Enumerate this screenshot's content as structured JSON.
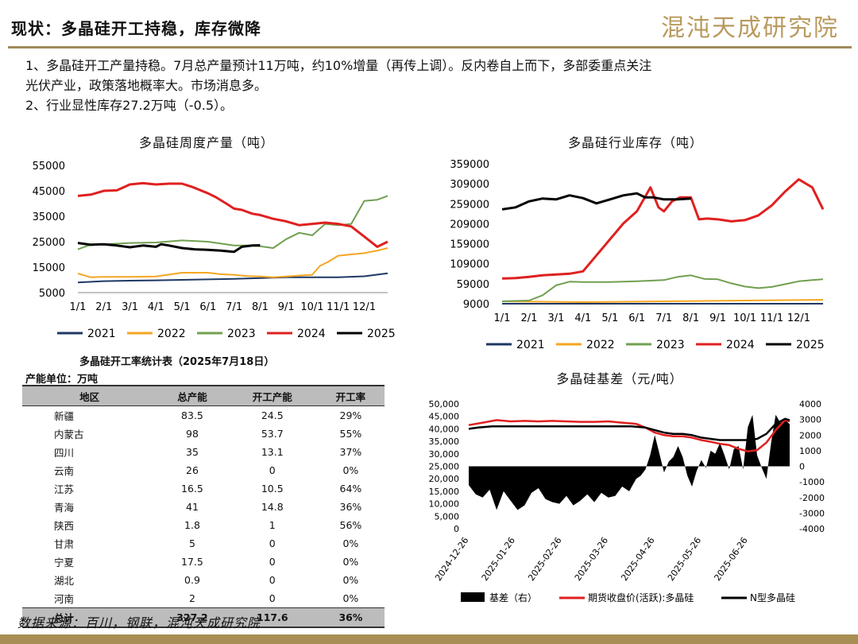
{
  "header": {
    "title": "现状：多晶硅开工持稳，库存微降",
    "brand": "混沌天成研究院"
  },
  "bullets": [
    "1、多晶硅开工产量持稳。7月总产量预计11万吨，约10%增量（再传上调）。反内卷自上而下，多部委重点关注",
    "光伏产业，政策落地概率大。市场消息多。",
    "2、行业显性库存27.2万吨（-0.5）。"
  ],
  "colors": {
    "s2021": "#1f3864",
    "s2022": "#f5a623",
    "s2023": "#70a050",
    "s2024": "#e02020",
    "s2025": "#000000",
    "basis": "#000000",
    "futures": "#e02020",
    "ntype": "#000000"
  },
  "chart_data": [
    {
      "type": "line",
      "title": "多晶硅周度产量（吨）",
      "categories": [
        "1/1",
        "2/1",
        "3/1",
        "4/1",
        "5/1",
        "6/1",
        "7/1",
        "8/1",
        "9/1",
        "10/1",
        "11/1",
        "12/1"
      ],
      "yticks": [
        "55000",
        "45000",
        "35000",
        "25000",
        "15000",
        "5000"
      ],
      "ylim": [
        5000,
        55000
      ],
      "xlim": [
        0,
        11.9
      ],
      "series": [
        {
          "name": "2021",
          "color": "#1f3864",
          "x": [
            0,
            1,
            2,
            3,
            4,
            5,
            6,
            7,
            8,
            9,
            10,
            11,
            11.9
          ],
          "values": [
            9000,
            9500,
            9700,
            9800,
            10000,
            10200,
            10400,
            10700,
            11000,
            11000,
            11000,
            11400,
            12600
          ]
        },
        {
          "name": "2022",
          "color": "#f5a623",
          "x": [
            0,
            0.5,
            1,
            2,
            3,
            4,
            5,
            5.5,
            6,
            6.5,
            7,
            7.5,
            8,
            8.7,
            9,
            9.3,
            9.6,
            10,
            10.5,
            11,
            11.5,
            11.9
          ],
          "values": [
            12500,
            11000,
            11200,
            11200,
            11300,
            12800,
            12800,
            12200,
            12000,
            11500,
            11300,
            11000,
            11300,
            11800,
            12000,
            15500,
            17000,
            19500,
            20000,
            20500,
            21500,
            22500
          ]
        },
        {
          "name": "2023",
          "color": "#70a050",
          "x": [
            0,
            0.4,
            1,
            2,
            3,
            4,
            5,
            6,
            6.5,
            7,
            7.5,
            8,
            8.5,
            9,
            9.5,
            10,
            10.5,
            11,
            11.5,
            11.9
          ],
          "values": [
            22000,
            23500,
            24000,
            24500,
            24700,
            25500,
            25000,
            23500,
            23500,
            23200,
            22500,
            26000,
            28500,
            27500,
            32000,
            31500,
            32000,
            41000,
            41500,
            43000
          ]
        },
        {
          "name": "2024",
          "color": "#e02020",
          "x": [
            0,
            0.5,
            1,
            1.5,
            2,
            2.5,
            3,
            3.5,
            4,
            4.4,
            5,
            5.3,
            5.7,
            6,
            6.3,
            6.7,
            7,
            7.5,
            8,
            8.5,
            9,
            9.5,
            10,
            10.5,
            11,
            11.5,
            11.9
          ],
          "values": [
            43000,
            43500,
            45000,
            45200,
            47500,
            48000,
            47500,
            47800,
            47800,
            46500,
            44000,
            42500,
            40000,
            38000,
            37500,
            36000,
            35500,
            34000,
            33000,
            31500,
            32000,
            32500,
            32000,
            31000,
            27000,
            23000,
            25000
          ]
        },
        {
          "name": "2025",
          "color": "#000000",
          "x": [
            0,
            0.5,
            1,
            1.5,
            2,
            2.5,
            3,
            3.2,
            3.5,
            4,
            4.5,
            5,
            5.5,
            6,
            6.3,
            6.7,
            7
          ],
          "values": [
            24500,
            23800,
            24000,
            23500,
            22800,
            23500,
            23000,
            24000,
            23500,
            22500,
            22000,
            21800,
            21500,
            21000,
            23000,
            23500,
            23600
          ]
        }
      ]
    },
    {
      "type": "line",
      "title": "多晶硅行业库存（吨）",
      "categories": [
        "1/1",
        "2/1",
        "3/1",
        "4/1",
        "5/1",
        "6/1",
        "7/1",
        "8/1",
        "9/1",
        "10/1",
        "11/1",
        "12/1"
      ],
      "yticks": [
        "359000",
        "309000",
        "259000",
        "209000",
        "159000",
        "109000",
        "59000",
        "9000"
      ],
      "ylim": [
        9000,
        359000
      ],
      "xlim": [
        0,
        11.9
      ],
      "series": [
        {
          "name": "2021",
          "color": "#1f3864",
          "x": [
            0,
            2,
            4,
            6,
            8,
            10,
            11.9
          ],
          "values": [
            9000,
            9000,
            9000,
            9000,
            9000,
            9000,
            9000
          ]
        },
        {
          "name": "2022",
          "color": "#f5a623",
          "x": [
            0,
            3,
            6,
            9,
            11.9
          ],
          "values": [
            15000,
            13000,
            15000,
            17000,
            19000
          ]
        },
        {
          "name": "2023",
          "color": "#70a050",
          "x": [
            0,
            1,
            1.5,
            2,
            2.5,
            3,
            3.5,
            4,
            4.5,
            5,
            6,
            6.5,
            7,
            7.5,
            8,
            8.5,
            9,
            9.5,
            10,
            10.5,
            11,
            11.5,
            11.9
          ],
          "values": [
            15000,
            17000,
            30000,
            55000,
            64000,
            63000,
            63000,
            63000,
            64000,
            65000,
            68000,
            76000,
            80000,
            71000,
            70000,
            60000,
            52000,
            48000,
            51000,
            58000,
            65000,
            68000,
            70000
          ]
        },
        {
          "name": "2024",
          "color": "#e02020",
          "x": [
            0,
            0.5,
            1,
            1.5,
            2,
            2.5,
            3,
            3.5,
            4,
            4.5,
            5,
            5.5,
            5.8,
            6,
            6.3,
            6.6,
            7,
            7.3,
            7.6,
            8,
            8.5,
            9,
            9.5,
            10,
            10.5,
            11,
            11.5,
            11.9
          ],
          "values": [
            72000,
            73000,
            76000,
            80000,
            82000,
            84000,
            90000,
            130000,
            170000,
            210000,
            240000,
            300000,
            250000,
            240000,
            265000,
            275000,
            275000,
            220000,
            222000,
            220000,
            215000,
            218000,
            230000,
            255000,
            290000,
            320000,
            300000,
            245000
          ]
        },
        {
          "name": "2025",
          "color": "#000000",
          "x": [
            0,
            0.5,
            1,
            1.5,
            2,
            2.5,
            3,
            3.5,
            4,
            4.5,
            5,
            5.3,
            5.6,
            6,
            6.5,
            7
          ],
          "values": [
            245000,
            250000,
            265000,
            272000,
            270000,
            280000,
            273000,
            260000,
            270000,
            280000,
            285000,
            275000,
            275000,
            270000,
            270000,
            272000
          ]
        }
      ]
    },
    {
      "type": "line",
      "title": "多晶硅基差（元/吨）",
      "x_tick_labels": [
        "2024-12-26",
        "2025-01-26",
        "2025-02-26",
        "2025-03-26",
        "2025-04-26",
        "2025-05-26",
        "2025-06-26"
      ],
      "yticks_left": [
        "50,000",
        "45,000",
        "40,000",
        "35,000",
        "30,000",
        "25,000",
        "20,000",
        "15,000",
        "10,000",
        "5,000",
        "0"
      ],
      "yticks_right": [
        "4000",
        "3000",
        "2000",
        "1000",
        "0",
        "-1000",
        "-2000",
        "-3000",
        "-4000"
      ],
      "ylim_left": [
        0,
        50000
      ],
      "ylim_right": [
        -4000,
        4000
      ],
      "xlim": [
        0,
        6.9
      ],
      "legend": [
        "基差（右）",
        "期货收盘价(活跃):多晶硅",
        "N型多晶硅"
      ],
      "series": [
        {
          "name": "基差（右）",
          "type": "area",
          "axis": "right",
          "color": "#000000",
          "x": [
            0,
            0.15,
            0.3,
            0.45,
            0.6,
            0.75,
            0.9,
            1.05,
            1.2,
            1.35,
            1.5,
            1.65,
            1.8,
            1.95,
            2.1,
            2.25,
            2.4,
            2.55,
            2.7,
            2.85,
            3.0,
            3.15,
            3.3,
            3.45,
            3.6,
            3.7,
            3.8,
            3.9,
            4.0,
            4.1,
            4.2,
            4.3,
            4.4,
            4.5,
            4.6,
            4.7,
            4.8,
            4.9,
            5.0,
            5.1,
            5.2,
            5.3,
            5.4,
            5.5,
            5.6,
            5.7,
            5.8,
            5.9,
            6.0,
            6.1,
            6.2,
            6.3,
            6.4,
            6.5,
            6.6,
            6.7,
            6.8,
            6.9
          ],
          "values": [
            -1200,
            -1800,
            -2000,
            -1500,
            -2800,
            -1600,
            -2200,
            -2800,
            -2500,
            -1700,
            -1400,
            -2100,
            -2300,
            -2400,
            -1900,
            -2500,
            -2200,
            -1800,
            -2300,
            -1700,
            -2000,
            -1900,
            -1300,
            -1600,
            -800,
            -600,
            -200,
            700,
            2000,
            800,
            -400,
            300,
            600,
            1300,
            600,
            -600,
            -1300,
            -300,
            400,
            -100,
            1000,
            800,
            1500,
            700,
            -200,
            1100,
            1300,
            -200,
            2500,
            3300,
            700,
            -100,
            -800,
            1500,
            3300,
            2800,
            3000,
            2700
          ]
        },
        {
          "name": "期货收盘价(活跃):多晶硅",
          "axis": "left",
          "color": "#e02020",
          "x": [
            0,
            0.3,
            0.6,
            0.9,
            1.2,
            1.5,
            1.8,
            2.1,
            2.4,
            2.7,
            3.0,
            3.3,
            3.6,
            3.8,
            4.0,
            4.2,
            4.4,
            4.6,
            4.8,
            5.0,
            5.2,
            5.4,
            5.6,
            5.8,
            6.0,
            6.2,
            6.4,
            6.6,
            6.8,
            6.9
          ],
          "values": [
            41500,
            42500,
            43500,
            43000,
            43200,
            43000,
            43200,
            43000,
            42800,
            42800,
            43000,
            42500,
            42000,
            40500,
            38500,
            37500,
            37000,
            37000,
            36500,
            35500,
            34800,
            34000,
            33500,
            32000,
            31000,
            31500,
            34500,
            39500,
            43500,
            43000
          ]
        },
        {
          "name": "N型多晶硅",
          "axis": "left",
          "color": "#000000",
          "x": [
            0,
            0.2,
            0.5,
            1.0,
            1.5,
            2.0,
            2.5,
            3.0,
            3.5,
            3.8,
            4.0,
            4.2,
            4.4,
            4.6,
            4.8,
            5.0,
            5.2,
            5.4,
            5.6,
            5.8,
            6.0,
            6.2,
            6.4,
            6.6,
            6.8,
            6.9
          ],
          "values": [
            40000,
            40500,
            41000,
            41000,
            41000,
            41000,
            41000,
            41000,
            41000,
            40500,
            39500,
            38500,
            38000,
            38000,
            37500,
            36500,
            36000,
            35500,
            35500,
            35500,
            35500,
            36000,
            38000,
            42000,
            44000,
            43500
          ]
        }
      ]
    },
    {
      "type": "table",
      "title": "多晶硅开工率统计表（2025年7月18日）",
      "unit_label": "产能单位：万吨",
      "columns": [
        "地区",
        "总产能",
        "开工产能",
        "开工率"
      ],
      "rows": [
        [
          "新疆",
          "83.5",
          "24.5",
          "29%"
        ],
        [
          "内蒙古",
          "98",
          "53.7",
          "55%"
        ],
        [
          "四川",
          "35",
          "13.1",
          "37%"
        ],
        [
          "云南",
          "26",
          "0",
          "0%"
        ],
        [
          "江苏",
          "16.5",
          "10.5",
          "64%"
        ],
        [
          "青海",
          "41",
          "14.8",
          "36%"
        ],
        [
          "陕西",
          "1.8",
          "1",
          "56%"
        ],
        [
          "甘肃",
          "5",
          "0",
          "0%"
        ],
        [
          "宁夏",
          "17.5",
          "0",
          "0%"
        ],
        [
          "湖北",
          "0.9",
          "0",
          "0%"
        ],
        [
          "河南",
          "2",
          "0",
          "0%"
        ]
      ],
      "total": [
        "总计",
        "327.2",
        "117.6",
        "36%"
      ]
    }
  ],
  "source": "数据来源：百川，钢联，混沌天成研究院"
}
